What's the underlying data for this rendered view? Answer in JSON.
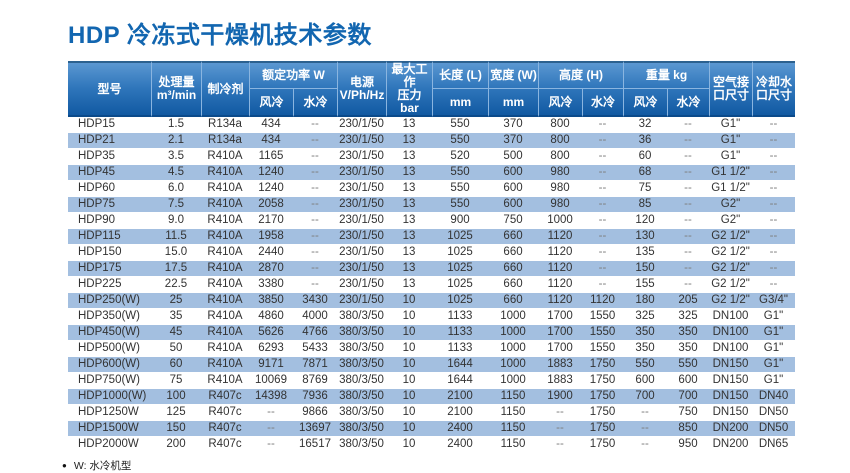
{
  "page": {
    "title": "HDP 冷冻式干燥机技术参数",
    "footnote_bullet": "●",
    "footnote": "W: 水冷机型"
  },
  "colors": {
    "title_text": "#1266b0",
    "header_gradient_top": "#5e9ad3",
    "header_gradient_bottom": "#0f57a0",
    "header_border_dark": "#0b4a8a",
    "header_separator": "#8ab5e0",
    "stripe_blue": "#a3bfe0",
    "body_text": "#333333"
  },
  "table": {
    "header": {
      "model": "型号",
      "capacity_line1": "处理量",
      "capacity_line2": "m³/min",
      "refrigerant": "制冷剂",
      "rated_power": "额定功率 W",
      "air_cooled": "风冷",
      "water_cooled": "水冷",
      "power_line1": "电源",
      "power_line2": "V/Ph/Hz",
      "pressure_line1": "最大工作",
      "pressure_line2": "压力 bar",
      "length": "长度 (L)",
      "width": "宽度 (W)",
      "mm": "mm",
      "height": "高度 (H)",
      "weight": "重量 kg",
      "air_port_line1": "空气接",
      "air_port_line2": "口尺寸",
      "water_port_line1": "冷却水",
      "water_port_line2": "口尺寸"
    },
    "rows": [
      [
        "HDP15",
        "1.5",
        "R134a",
        "434",
        "--",
        "230/1/50",
        "13",
        "550",
        "370",
        "800",
        "--",
        "32",
        "--",
        "G1\"",
        "--"
      ],
      [
        "HDP21",
        "2.1",
        "R134a",
        "434",
        "--",
        "230/1/50",
        "13",
        "550",
        "370",
        "800",
        "--",
        "36",
        "--",
        "G1\"",
        "--"
      ],
      [
        "HDP35",
        "3.5",
        "R410A",
        "1165",
        "--",
        "230/1/50",
        "13",
        "520",
        "500",
        "800",
        "--",
        "60",
        "--",
        "G1\"",
        "--"
      ],
      [
        "HDP45",
        "4.5",
        "R410A",
        "1240",
        "--",
        "230/1/50",
        "13",
        "550",
        "600",
        "980",
        "--",
        "68",
        "--",
        "G1 1/2\"",
        "--"
      ],
      [
        "HDP60",
        "6.0",
        "R410A",
        "1240",
        "--",
        "230/1/50",
        "13",
        "550",
        "600",
        "980",
        "--",
        "75",
        "--",
        "G1 1/2\"",
        "--"
      ],
      [
        "HDP75",
        "7.5",
        "R410A",
        "2058",
        "--",
        "230/1/50",
        "13",
        "550",
        "600",
        "980",
        "--",
        "85",
        "--",
        "G2\"",
        "--"
      ],
      [
        "HDP90",
        "9.0",
        "R410A",
        "2170",
        "--",
        "230/1/50",
        "13",
        "900",
        "750",
        "1000",
        "--",
        "120",
        "--",
        "G2\"",
        "--"
      ],
      [
        "HDP115",
        "11.5",
        "R410A",
        "1958",
        "--",
        "230/1/50",
        "13",
        "1025",
        "660",
        "1120",
        "--",
        "130",
        "--",
        "G2 1/2\"",
        "--"
      ],
      [
        "HDP150",
        "15.0",
        "R410A",
        "2440",
        "--",
        "230/1/50",
        "13",
        "1025",
        "660",
        "1120",
        "--",
        "135",
        "--",
        "G2 1/2\"",
        "--"
      ],
      [
        "HDP175",
        "17.5",
        "R410A",
        "2870",
        "--",
        "230/1/50",
        "13",
        "1025",
        "660",
        "1120",
        "--",
        "150",
        "--",
        "G2 1/2\"",
        "--"
      ],
      [
        "HDP225",
        "22.5",
        "R410A",
        "3380",
        "--",
        "230/1/50",
        "13",
        "1025",
        "660",
        "1120",
        "--",
        "155",
        "--",
        "G2 1/2\"",
        "--"
      ],
      [
        "HDP250(W)",
        "25",
        "R410A",
        "3850",
        "3430",
        "230/1/50",
        "10",
        "1025",
        "660",
        "1120",
        "1120",
        "180",
        "205",
        "G2 1/2\"",
        "G3/4\""
      ],
      [
        "HDP350(W)",
        "35",
        "R410A",
        "4860",
        "4000",
        "380/3/50",
        "10",
        "1133",
        "1000",
        "1700",
        "1550",
        "325",
        "325",
        "DN100",
        "G1\""
      ],
      [
        "HDP450(W)",
        "45",
        "R410A",
        "5626",
        "4766",
        "380/3/50",
        "10",
        "1133",
        "1000",
        "1700",
        "1550",
        "350",
        "350",
        "DN100",
        "G1\""
      ],
      [
        "HDP500(W)",
        "50",
        "R410A",
        "6293",
        "5433",
        "380/3/50",
        "10",
        "1133",
        "1000",
        "1700",
        "1550",
        "350",
        "350",
        "DN100",
        "G1\""
      ],
      [
        "HDP600(W)",
        "60",
        "R410A",
        "9171",
        "7871",
        "380/3/50",
        "10",
        "1644",
        "1000",
        "1883",
        "1750",
        "550",
        "550",
        "DN150",
        "G1\""
      ],
      [
        "HDP750(W)",
        "75",
        "R410A",
        "10069",
        "8769",
        "380/3/50",
        "10",
        "1644",
        "1000",
        "1883",
        "1750",
        "600",
        "600",
        "DN150",
        "G1\""
      ],
      [
        "HDP1000(W)",
        "100",
        "R407c",
        "14398",
        "7936",
        "380/3/50",
        "10",
        "2100",
        "1150",
        "1900",
        "1750",
        "700",
        "700",
        "DN150",
        "DN40"
      ],
      [
        "HDP1250W",
        "125",
        "R407c",
        "--",
        "9866",
        "380/3/50",
        "10",
        "2100",
        "1150",
        "--",
        "1750",
        "--",
        "750",
        "DN150",
        "DN50"
      ],
      [
        "HDP1500W",
        "150",
        "R407c",
        "--",
        "13697",
        "380/3/50",
        "10",
        "2400",
        "1150",
        "--",
        "1750",
        "--",
        "850",
        "DN200",
        "DN50"
      ],
      [
        "HDP2000W",
        "200",
        "R407c",
        "--",
        "16517",
        "380/3/50",
        "10",
        "2400",
        "1150",
        "--",
        "1750",
        "--",
        "950",
        "DN200",
        "DN65"
      ]
    ]
  }
}
